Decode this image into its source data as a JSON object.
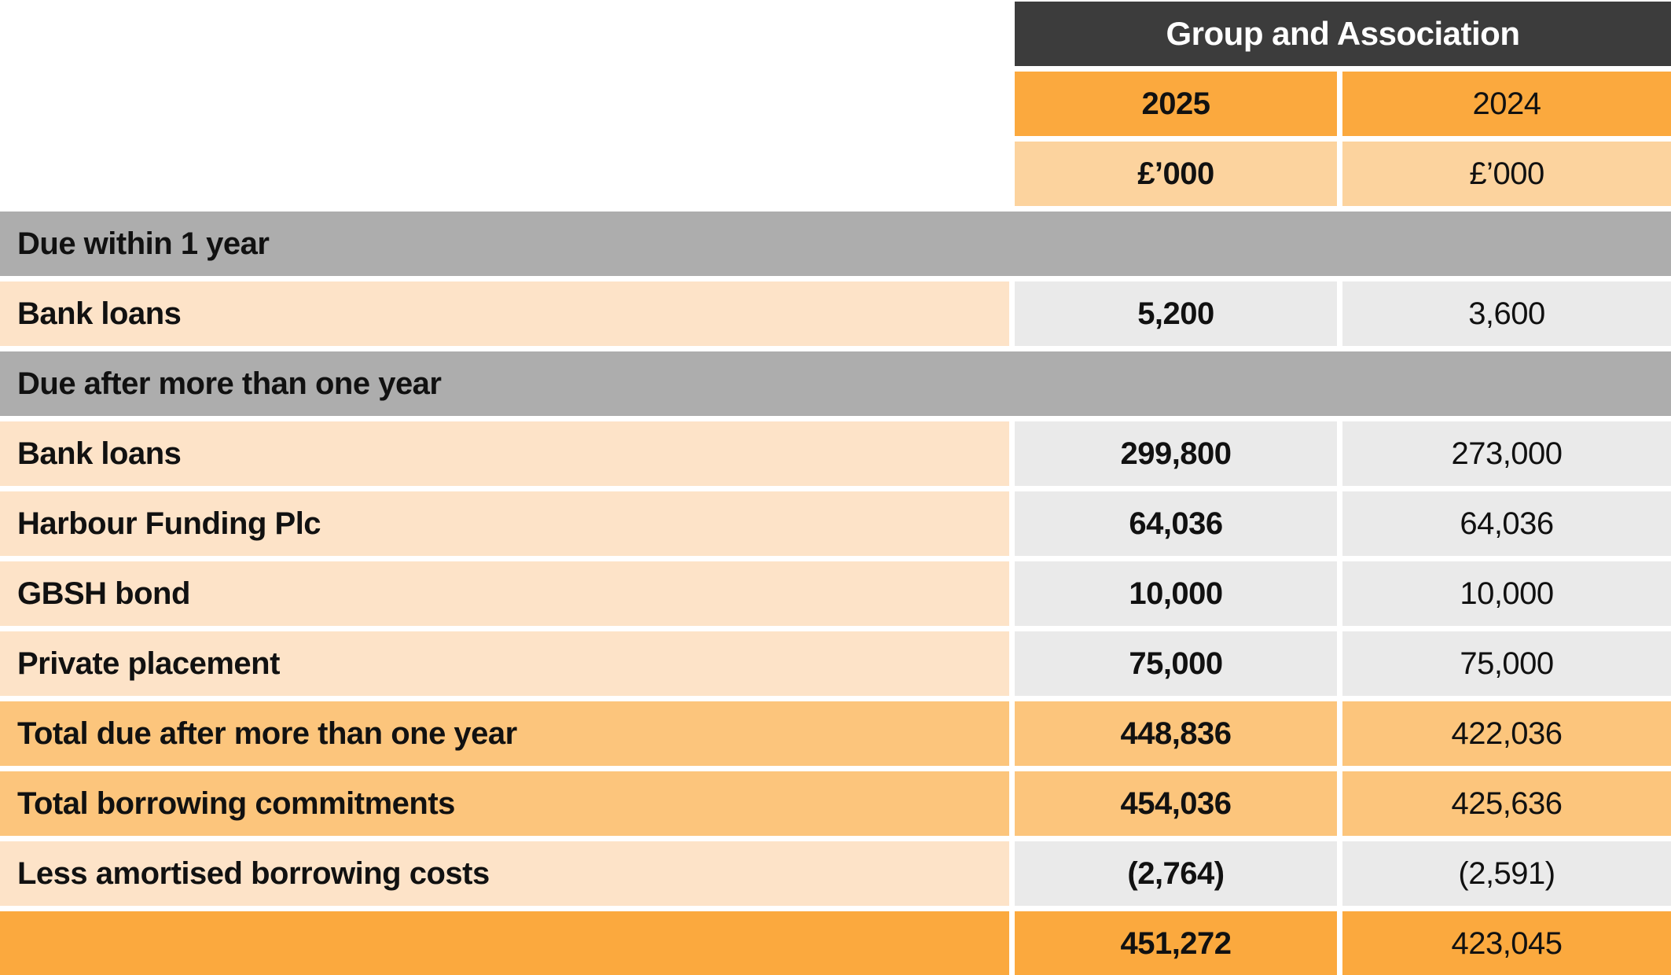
{
  "colors": {
    "header_dark": "#3c3c3c",
    "accent_orange": "#fba93e",
    "unit_row_orange": "#fcd39e",
    "label_peach": "#fde3c8",
    "section_gray": "#adadad",
    "value_gray": "#eaeaea",
    "total_orange": "#fcc57c",
    "header_text": "#ffffff",
    "body_text": "#111111"
  },
  "header": {
    "title": "Group and Association",
    "col2025": {
      "year": "2025",
      "unit": "£’000"
    },
    "col2024": {
      "year": "2024",
      "unit": "£’000"
    }
  },
  "rows": [
    {
      "type": "section",
      "label": "Due within 1 year"
    },
    {
      "type": "data",
      "label": "Bank loans",
      "v2025": "5,200",
      "v2024": "3,600"
    },
    {
      "type": "section",
      "label": "Due after more than one year"
    },
    {
      "type": "data",
      "label": "Bank loans",
      "v2025": "299,800",
      "v2024": "273,000"
    },
    {
      "type": "data",
      "label": "Harbour Funding Plc",
      "v2025": "64,036",
      "v2024": "64,036"
    },
    {
      "type": "data",
      "label": "GBSH bond",
      "v2025": "10,000",
      "v2024": "10,000"
    },
    {
      "type": "data",
      "label": "Private placement",
      "v2025": "75,000",
      "v2024": "75,000"
    },
    {
      "type": "total",
      "label": "Total due after more than one year",
      "v2025": "448,836",
      "v2024": "422,036"
    },
    {
      "type": "total",
      "label": "Total borrowing commitments",
      "v2025": "454,036",
      "v2024": "425,636"
    },
    {
      "type": "data",
      "label": "Less amortised borrowing costs",
      "v2025": "(2,764)",
      "v2024": "(2,591)"
    },
    {
      "type": "grand_total",
      "label": "",
      "v2025": "451,272",
      "v2024": "423,045"
    }
  ]
}
